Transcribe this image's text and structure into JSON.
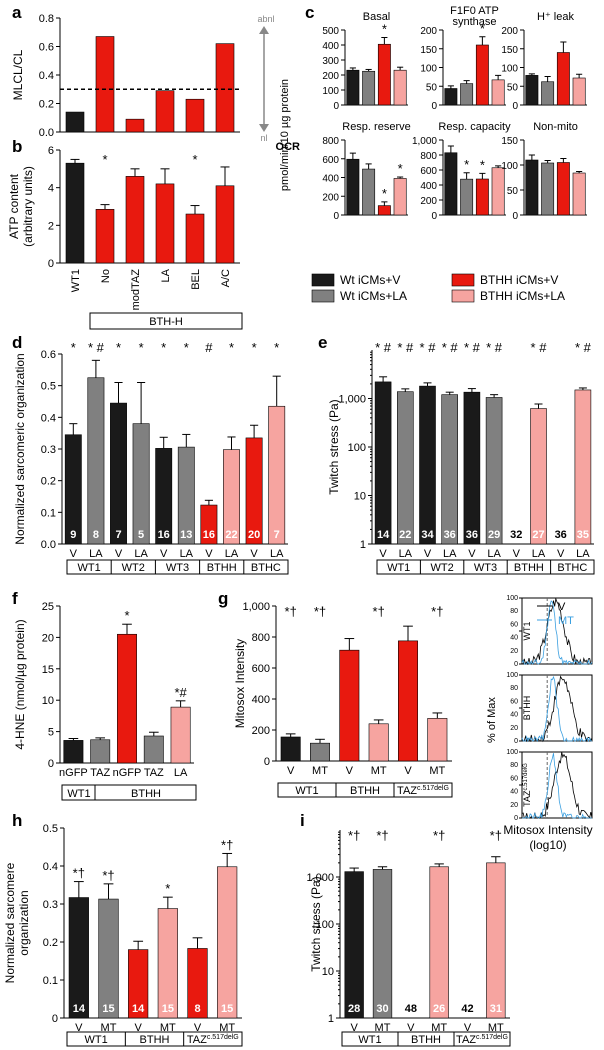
{
  "colors": {
    "black": "#1a1a1a",
    "gray": "#808080",
    "red": "#e8190f",
    "pink": "#f6a4a0",
    "line": "#000000",
    "blue": "#3a9fe0"
  },
  "chart_data": [
    {
      "id": "a",
      "letter": "a",
      "type": "bar",
      "ylabel": "MLCL/CL",
      "ylim": [
        0,
        0.8
      ],
      "yticks": [
        "0.0",
        "0.2",
        "0.4",
        "0.6",
        "0.8"
      ],
      "categories": [
        "WT1",
        "No",
        "modTAZ",
        "LA",
        "BEL",
        "A/C"
      ],
      "values": [
        0.14,
        0.67,
        0.09,
        0.29,
        0.23,
        0.62
      ],
      "colors": [
        "black",
        "red",
        "red",
        "red",
        "red",
        "red"
      ],
      "threshold": 0.3,
      "side_labels": [
        "abnl",
        "nl"
      ]
    },
    {
      "id": "b",
      "letter": "b",
      "type": "bar",
      "ylabel": "ATP content",
      "ylabel2": "(arbitrary units)",
      "ylim": [
        0,
        6
      ],
      "yticks": [
        "0",
        "2",
        "4",
        "6"
      ],
      "categories": [
        "WT1",
        "No",
        "modTAZ",
        "LA",
        "BEL",
        "A/C"
      ],
      "values": [
        5.3,
        2.85,
        4.6,
        4.2,
        2.6,
        4.1
      ],
      "errors": [
        0.2,
        0.25,
        0.4,
        0.8,
        0.45,
        1.0
      ],
      "colors": [
        "black",
        "red",
        "red",
        "red",
        "red",
        "red"
      ],
      "marks": [
        "",
        "*",
        "",
        "",
        "*",
        ""
      ],
      "group": "BTH-H"
    },
    {
      "id": "c",
      "letter": "c",
      "type": "bar",
      "ylabel": "OCR",
      "ylabel2": "pmol/min/10 µg protein",
      "panels": [
        {
          "title": "Basal",
          "ylim": [
            0,
            500
          ],
          "yticks": [
            "0",
            "100",
            "200",
            "300",
            "400",
            "500"
          ],
          "values": [
            232,
            225,
            405,
            232
          ],
          "errors": [
            15,
            12,
            45,
            20
          ],
          "marks": [
            "",
            "",
            "*",
            ""
          ]
        },
        {
          "title": "F1F0 ATP",
          "title2": "synthase",
          "ylim": [
            0,
            200
          ],
          "yticks": [
            "0",
            "50",
            "100",
            "150",
            "200"
          ],
          "values": [
            44,
            57,
            160,
            67
          ],
          "errors": [
            7,
            8,
            22,
            12
          ],
          "marks": [
            "",
            "",
            "*",
            ""
          ]
        },
        {
          "title": "H⁺ leak",
          "ylim": [
            0,
            200
          ],
          "yticks": [
            "0",
            "50",
            "100",
            "150",
            "200"
          ],
          "values": [
            79,
            62,
            140,
            72
          ],
          "errors": [
            4,
            14,
            28,
            10
          ],
          "marks": [
            "",
            "",
            "",
            ""
          ]
        },
        {
          "title": "Resp. reserve",
          "ylim": [
            0,
            800
          ],
          "yticks": [
            "0",
            "200",
            "400",
            "600",
            "800"
          ],
          "values": [
            595,
            490,
            100,
            390
          ],
          "errors": [
            65,
            55,
            40,
            15
          ],
          "marks": [
            "",
            "",
            "*",
            "*"
          ]
        },
        {
          "title": "Resp. capacity",
          "ylim": [
            0,
            1000
          ],
          "yticks": [
            "0",
            "200",
            "400",
            "600",
            "800",
            "1,000"
          ],
          "values": [
            830,
            478,
            480,
            630
          ],
          "errors": [
            90,
            85,
            75,
            25
          ],
          "marks": [
            "",
            "*",
            "*",
            ""
          ]
        },
        {
          "title": "Non-mito",
          "ylim": [
            0,
            150
          ],
          "yticks": [
            "0",
            "50",
            "100",
            "150"
          ],
          "values": [
            110,
            104,
            105,
            84
          ],
          "errors": [
            10,
            5,
            8,
            3
          ],
          "marks": [
            "",
            "",
            "",
            ""
          ]
        }
      ],
      "colors": [
        "black",
        "gray",
        "red",
        "pink"
      ],
      "legend": [
        "Wt iCMs+V",
        "Wt iCMs+LA",
        "BTHH iCMs+V",
        "BTHH iCMs+LA"
      ]
    },
    {
      "id": "d",
      "letter": "d",
      "type": "bar",
      "ylabel": "Normalized sarcomeric organization",
      "ylim": [
        0,
        0.6
      ],
      "yticks": [
        "0.0",
        "0.1",
        "0.2",
        "0.3",
        "0.4",
        "0.5",
        "0.6"
      ],
      "values": [
        0.345,
        0.525,
        0.445,
        0.38,
        0.302,
        0.306,
        0.123,
        0.298,
        0.335,
        0.435
      ],
      "errors": [
        0.035,
        0.055,
        0.065,
        0.13,
        0.035,
        0.04,
        0.015,
        0.04,
        0.04,
        0.095
      ],
      "colors": [
        "black",
        "gray",
        "black",
        "gray",
        "black",
        "gray",
        "red",
        "pink",
        "red",
        "pink"
      ],
      "ns": [
        "9",
        "8",
        "7",
        "5",
        "16",
        "13",
        "16",
        "22",
        "20",
        "7"
      ],
      "marks": [
        "*",
        "* #",
        "*",
        "*",
        "*",
        "*",
        "#",
        "*",
        "*",
        "*"
      ],
      "xlabels": [
        "V",
        "LA",
        "V",
        "LA",
        "V",
        "LA",
        "V",
        "LA",
        "V",
        "LA"
      ],
      "groups": [
        "WT1",
        "WT2",
        "WT3",
        "BTHH",
        "BTHC"
      ]
    },
    {
      "id": "e",
      "letter": "e",
      "type": "bar",
      "log": true,
      "ylabel": "Twitch stress (Pa)",
      "ylim": [
        1,
        10000
      ],
      "yticks": [
        "1",
        "10",
        "100",
        "1,000"
      ],
      "values": [
        2200,
        1380,
        1800,
        1200,
        1350,
        1050,
        null,
        620,
        null,
        1500
      ],
      "errors": [
        600,
        200,
        300,
        150,
        250,
        150,
        0,
        150,
        0,
        150
      ],
      "colors": [
        "black",
        "gray",
        "black",
        "gray",
        "black",
        "gray",
        "red",
        "pink",
        "red",
        "pink"
      ],
      "ns": [
        "14",
        "22",
        "34",
        "36",
        "36",
        "29",
        "32",
        "27",
        "36",
        "35"
      ],
      "marks": [
        "* #",
        "* #",
        "* #",
        "* #",
        "* #",
        "* #",
        "",
        "* #",
        "",
        "* #"
      ],
      "xlabels": [
        "V",
        "LA",
        "V",
        "LA",
        "V",
        "LA",
        "V",
        "LA",
        "V",
        "LA"
      ],
      "groups": [
        "WT1",
        "WT2",
        "WT3",
        "BTHH",
        "BTHC"
      ]
    },
    {
      "id": "f",
      "letter": "f",
      "type": "bar",
      "ylabel": "4-HNE (nmol/µg protein)",
      "ylim": [
        0,
        25
      ],
      "yticks": [
        "0",
        "5",
        "10",
        "15",
        "20",
        "25"
      ],
      "values": [
        3.6,
        3.7,
        20.5,
        4.3,
        8.9
      ],
      "errors": [
        0.3,
        0.3,
        1.6,
        0.6,
        1.0
      ],
      "colors": [
        "black",
        "gray",
        "red",
        "gray",
        "pink"
      ],
      "marks": [
        "",
        "",
        "*",
        "",
        "*#"
      ],
      "xlabels": [
        "nGFP",
        "TAZ",
        "nGFP",
        "TAZ",
        "LA"
      ],
      "groups": [
        "WT1",
        "BTHH"
      ]
    },
    {
      "id": "g",
      "letter": "g",
      "type": "bar",
      "ylabel": "Mitosox Intensity",
      "ylim": [
        0,
        1000
      ],
      "yticks": [
        "0",
        "200",
        "400",
        "600",
        "800",
        "1,000"
      ],
      "values": [
        155,
        115,
        715,
        240,
        775,
        275
      ],
      "errors": [
        20,
        25,
        75,
        25,
        95,
        35
      ],
      "colors": [
        "black",
        "gray",
        "red",
        "pink",
        "red",
        "pink"
      ],
      "marks": [
        "*†",
        "*†",
        "",
        "*†",
        "",
        "*†"
      ],
      "xlabels": [
        "V",
        "MT",
        "V",
        "MT",
        "V",
        "MT"
      ],
      "groups": [
        "WT1",
        "BTHH",
        "TAZc.517delG"
      ]
    },
    {
      "id": "g2",
      "type": "histogram",
      "ylabel": "% of Max",
      "xlabel": "Mitosox Intensity",
      "xlabel2": "(log10)",
      "yticks": [
        "0",
        "20",
        "40",
        "60",
        "80",
        "100"
      ],
      "panels": [
        "WT1",
        "BTHH",
        "TAZc.517delG"
      ],
      "legend": [
        "V",
        "MT"
      ]
    },
    {
      "id": "h",
      "letter": "h",
      "type": "bar",
      "ylabel": "Normalized sarcomere",
      "ylabel2": "organization",
      "ylim": [
        0,
        0.5
      ],
      "yticks": [
        "0",
        "0.1",
        "0.2",
        "0.3",
        "0.4",
        "0.5"
      ],
      "values": [
        0.317,
        0.313,
        0.18,
        0.288,
        0.183,
        0.398
      ],
      "errors": [
        0.042,
        0.04,
        0.022,
        0.03,
        0.028,
        0.035
      ],
      "colors": [
        "black",
        "gray",
        "red",
        "pink",
        "red",
        "pink"
      ],
      "ns": [
        "14",
        "15",
        "14",
        "15",
        "8",
        "15"
      ],
      "marks": [
        "*†",
        "*†",
        "",
        "*",
        "",
        "*†"
      ],
      "xlabels": [
        "V",
        "MT",
        "V",
        "MT",
        "V",
        "MT"
      ],
      "groups": [
        "WT1",
        "BTHH",
        "TAZc.517delG"
      ]
    },
    {
      "id": "i",
      "letter": "i",
      "type": "bar",
      "log": true,
      "ylabel": "Twitch stress (Pa)",
      "ylim": [
        1,
        10000
      ],
      "yticks": [
        "1",
        "10",
        "100",
        "1,000"
      ],
      "values": [
        1300,
        1450,
        null,
        1650,
        null,
        2000
      ],
      "errors": [
        250,
        200,
        0,
        250,
        0,
        700
      ],
      "colors": [
        "black",
        "gray",
        "red",
        "pink",
        "red",
        "pink"
      ],
      "ns": [
        "28",
        "30",
        "48",
        "26",
        "42",
        "31"
      ],
      "marks": [
        "*†",
        "*†",
        "",
        "*†",
        "",
        "*†"
      ],
      "xlabels": [
        "V",
        "MT",
        "V",
        "MT",
        "V",
        "MT"
      ],
      "groups": [
        "WT1",
        "BTHH",
        "TAZc.517delG"
      ]
    }
  ]
}
